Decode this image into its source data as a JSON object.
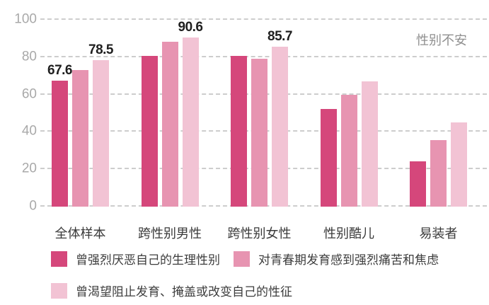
{
  "annotation": "性别不安",
  "chart_data": {
    "type": "bar",
    "title": "",
    "annotation": "性别不安",
    "categories": [
      "全体样本",
      "跨性别男性",
      "跨性别女性",
      "性别酷儿",
      "易装者"
    ],
    "series": [
      {
        "name": "曾强烈厌恶自己的生理性别",
        "color": "#d5477b",
        "values": [
          67.6,
          80.6,
          80.6,
          52.3,
          24.2
        ]
      },
      {
        "name": "对青春期发育感到强烈痛苦和焦虑",
        "color": "#e794b1",
        "values": [
          73.2,
          88.3,
          79.2,
          59.8,
          35.8
        ]
      },
      {
        "name": "曾渴望阻止发育、掩盖或改变自己的性征",
        "color": "#f2c3d4",
        "values": [
          78.5,
          90.6,
          85.7,
          66.9,
          45.2
        ]
      }
    ],
    "bar_labels": [
      {
        "category_index": 0,
        "series_index": 0,
        "text": "67.6"
      },
      {
        "category_index": 0,
        "series_index": 2,
        "text": "78.5"
      },
      {
        "category_index": 1,
        "series_index": 2,
        "text": "90.6"
      },
      {
        "category_index": 2,
        "series_index": 2,
        "text": "85.7"
      }
    ],
    "y_ticks": [
      0,
      20,
      40,
      60,
      80,
      100
    ],
    "ylim": [
      0,
      100
    ],
    "grid": "dashed horizontal",
    "legend_position": "bottom",
    "legend_rows": [
      [
        0,
        1
      ],
      [
        2
      ]
    ]
  },
  "colors": {
    "background": "#ffffff",
    "gridline": "#cdcdcd",
    "axis_label": "#a9a9a9",
    "data_label": "#1f1f1f",
    "category_label": "#3a3a3a",
    "legend_text": "#3d3d3d",
    "annotation_text": "#8f8f8f"
  }
}
